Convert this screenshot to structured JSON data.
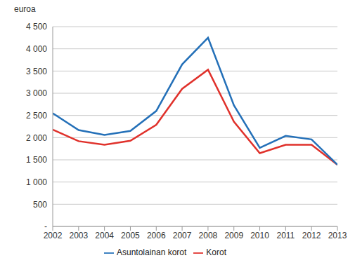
{
  "chart_data": {
    "type": "line",
    "y_label": "euroa",
    "x": [
      2002,
      2003,
      2004,
      2005,
      2006,
      2007,
      2008,
      2009,
      2010,
      2011,
      2012,
      2013
    ],
    "xlim": [
      2002,
      2013
    ],
    "xticks": [
      2002,
      2003,
      2004,
      2005,
      2006,
      2007,
      2008,
      2009,
      2010,
      2011,
      2012,
      2013
    ],
    "ylim": [
      0,
      4500
    ],
    "yticks": [
      {
        "value": 0,
        "label": "-"
      },
      500,
      {
        "value": 1000,
        "label": "1 000"
      },
      {
        "value": 1500,
        "label": "1 500"
      },
      {
        "value": 2000,
        "label": "2 000"
      },
      {
        "value": 2500,
        "label": "2 500"
      },
      {
        "value": 3000,
        "label": "3 000"
      },
      {
        "value": 3500,
        "label": "3 500"
      },
      {
        "value": 4000,
        "label": "4 000"
      },
      {
        "value": 4500,
        "label": "4 500"
      }
    ],
    "grid": true,
    "legend": "bottom",
    "series": [
      {
        "name": "Korot",
        "color": "#e0312b",
        "values": [
          2180,
          1920,
          1840,
          1930,
          2290,
          3100,
          3530,
          2360,
          1650,
          1840,
          1840,
          1390
        ]
      },
      {
        "name": "Asuntolainan korot",
        "color": "#2470b8",
        "values": [
          2550,
          2170,
          2060,
          2150,
          2600,
          3650,
          4250,
          2730,
          1770,
          2040,
          1960,
          1390
        ]
      }
    ]
  }
}
